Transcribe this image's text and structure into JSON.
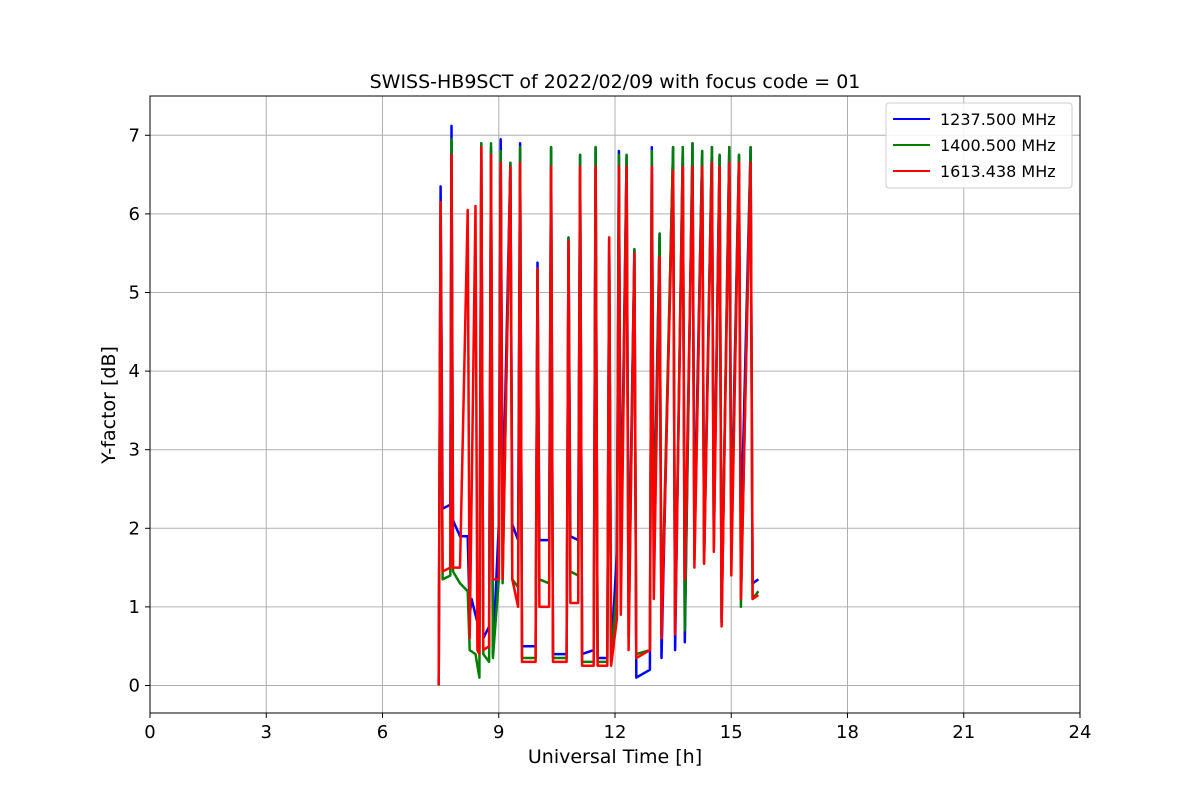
{
  "chart_data": {
    "type": "line",
    "title": "SWISS-HB9SCT of 2022/02/09 with focus code = 01",
    "xlabel": "Universal Time [h]",
    "ylabel": "Y-factor [dB]",
    "xlim": [
      0,
      24
    ],
    "ylim": [
      -0.35,
      7.5
    ],
    "xticks": [
      0,
      3,
      6,
      9,
      12,
      15,
      18,
      21,
      24
    ],
    "yticks": [
      0,
      1,
      2,
      3,
      4,
      5,
      6,
      7
    ],
    "grid": true,
    "legend_position": "top-right",
    "series": [
      {
        "name": "1237.500 MHz",
        "color": "#0000ff",
        "points": [
          [
            7.45,
            0
          ],
          [
            7.5,
            6.35
          ],
          [
            7.55,
            2.25
          ],
          [
            7.75,
            2.3
          ],
          [
            7.78,
            7.12
          ],
          [
            7.82,
            2.1
          ],
          [
            8.0,
            1.9
          ],
          [
            8.2,
            1.9
          ],
          [
            8.25,
            0.9
          ],
          [
            8.3,
            1.1
          ],
          [
            8.5,
            0.7
          ],
          [
            8.55,
            6.9
          ],
          [
            8.6,
            0.6
          ],
          [
            8.75,
            0.75
          ],
          [
            8.8,
            6.85
          ],
          [
            8.85,
            0.4
          ],
          [
            9.0,
            2.05
          ],
          [
            9.05,
            6.95
          ],
          [
            9.1,
            2.1
          ],
          [
            9.3,
            6.65
          ],
          [
            9.35,
            2.05
          ],
          [
            9.5,
            1.85
          ],
          [
            9.55,
            6.9
          ],
          [
            9.6,
            0.5
          ],
          [
            9.95,
            0.5
          ],
          [
            10.0,
            5.38
          ],
          [
            10.05,
            1.85
          ],
          [
            10.3,
            1.85
          ],
          [
            10.35,
            6.85
          ],
          [
            10.4,
            0.4
          ],
          [
            10.75,
            0.4
          ],
          [
            10.8,
            5.7
          ],
          [
            10.85,
            1.9
          ],
          [
            11.05,
            1.85
          ],
          [
            11.1,
            6.75
          ],
          [
            11.15,
            0.4
          ],
          [
            11.45,
            0.45
          ],
          [
            11.5,
            6.85
          ],
          [
            11.55,
            0.35
          ],
          [
            11.8,
            0.35
          ],
          [
            11.85,
            5.7
          ],
          [
            11.9,
            0.35
          ],
          [
            12.05,
            1.7
          ],
          [
            12.1,
            6.8
          ],
          [
            12.15,
            1.65
          ],
          [
            12.3,
            6.75
          ],
          [
            12.35,
            1.05
          ],
          [
            12.5,
            5.55
          ],
          [
            12.55,
            0.1
          ],
          [
            12.9,
            0.2
          ],
          [
            12.95,
            6.85
          ],
          [
            13.0,
            1.85
          ],
          [
            13.15,
            5.75
          ],
          [
            13.2,
            0.35
          ],
          [
            13.5,
            6.85
          ],
          [
            13.55,
            0.45
          ],
          [
            13.75,
            6.85
          ],
          [
            13.8,
            0.55
          ],
          [
            14.0,
            6.9
          ],
          [
            14.05,
            1.95
          ],
          [
            14.25,
            6.8
          ],
          [
            14.3,
            1.7
          ],
          [
            14.5,
            6.85
          ],
          [
            14.55,
            1.95
          ],
          [
            14.7,
            6.75
          ],
          [
            14.75,
            0.8
          ],
          [
            14.95,
            6.85
          ],
          [
            15.0,
            2.0
          ],
          [
            15.2,
            6.75
          ],
          [
            15.25,
            1.85
          ],
          [
            15.5,
            6.85
          ],
          [
            15.55,
            1.3
          ],
          [
            15.7,
            1.35
          ]
        ]
      },
      {
        "name": "1400.500 MHz",
        "color": "#008000",
        "points": [
          [
            7.45,
            0
          ],
          [
            7.5,
            6.15
          ],
          [
            7.55,
            1.35
          ],
          [
            7.75,
            1.4
          ],
          [
            7.78,
            6.95
          ],
          [
            7.82,
            1.45
          ],
          [
            8.0,
            1.3
          ],
          [
            8.2,
            1.2
          ],
          [
            8.25,
            0.45
          ],
          [
            8.4,
            0.4
          ],
          [
            8.5,
            0.1
          ],
          [
            8.55,
            6.9
          ],
          [
            8.6,
            0.4
          ],
          [
            8.75,
            0.3
          ],
          [
            8.8,
            6.9
          ],
          [
            8.85,
            0.35
          ],
          [
            9.0,
            1.35
          ],
          [
            9.05,
            6.8
          ],
          [
            9.1,
            1.3
          ],
          [
            9.3,
            6.65
          ],
          [
            9.35,
            1.35
          ],
          [
            9.5,
            1.25
          ],
          [
            9.55,
            6.85
          ],
          [
            9.6,
            0.35
          ],
          [
            9.95,
            0.35
          ],
          [
            10.0,
            5.3
          ],
          [
            10.05,
            1.35
          ],
          [
            10.3,
            1.3
          ],
          [
            10.35,
            6.85
          ],
          [
            10.4,
            0.35
          ],
          [
            10.75,
            0.35
          ],
          [
            10.8,
            5.7
          ],
          [
            10.85,
            1.45
          ],
          [
            11.05,
            1.4
          ],
          [
            11.1,
            6.75
          ],
          [
            11.15,
            0.3
          ],
          [
            11.45,
            0.3
          ],
          [
            11.5,
            6.85
          ],
          [
            11.55,
            0.3
          ],
          [
            11.8,
            0.3
          ],
          [
            11.85,
            5.7
          ],
          [
            11.9,
            0.3
          ],
          [
            12.05,
            1.25
          ],
          [
            12.1,
            6.75
          ],
          [
            12.15,
            1.25
          ],
          [
            12.3,
            6.75
          ],
          [
            12.35,
            0.6
          ],
          [
            12.5,
            5.55
          ],
          [
            12.55,
            0.4
          ],
          [
            12.9,
            0.45
          ],
          [
            12.95,
            6.8
          ],
          [
            13.0,
            1.5
          ],
          [
            13.15,
            5.75
          ],
          [
            13.2,
            0.7
          ],
          [
            13.5,
            6.85
          ],
          [
            13.55,
            0.7
          ],
          [
            13.75,
            6.85
          ],
          [
            13.8,
            0.7
          ],
          [
            14.0,
            6.9
          ],
          [
            14.05,
            1.6
          ],
          [
            14.25,
            6.8
          ],
          [
            14.3,
            1.55
          ],
          [
            14.5,
            6.85
          ],
          [
            14.55,
            1.75
          ],
          [
            14.7,
            6.75
          ],
          [
            14.75,
            0.85
          ],
          [
            14.95,
            6.85
          ],
          [
            15.0,
            1.7
          ],
          [
            15.2,
            6.75
          ],
          [
            15.25,
            1.0
          ],
          [
            15.5,
            6.85
          ],
          [
            15.55,
            1.1
          ],
          [
            15.7,
            1.2
          ]
        ]
      },
      {
        "name": "1613.438 MHz",
        "color": "#ff0000",
        "points": [
          [
            7.45,
            0
          ],
          [
            7.5,
            6.15
          ],
          [
            7.55,
            1.45
          ],
          [
            7.75,
            1.5
          ],
          [
            7.78,
            6.75
          ],
          [
            7.82,
            1.5
          ],
          [
            8.0,
            1.5
          ],
          [
            8.2,
            6.05
          ],
          [
            8.25,
            0.6
          ],
          [
            8.4,
            6.1
          ],
          [
            8.45,
            0.45
          ],
          [
            8.5,
            0.4
          ],
          [
            8.55,
            6.85
          ],
          [
            8.6,
            0.45
          ],
          [
            8.75,
            0.5
          ],
          [
            8.8,
            6.75
          ],
          [
            8.85,
            1.35
          ],
          [
            9.0,
            1.35
          ],
          [
            9.05,
            6.65
          ],
          [
            9.1,
            1.35
          ],
          [
            9.3,
            6.6
          ],
          [
            9.35,
            1.35
          ],
          [
            9.5,
            1.0
          ],
          [
            9.55,
            6.65
          ],
          [
            9.6,
            0.3
          ],
          [
            9.95,
            0.3
          ],
          [
            10.0,
            5.3
          ],
          [
            10.05,
            1.0
          ],
          [
            10.3,
            1.0
          ],
          [
            10.35,
            6.6
          ],
          [
            10.4,
            0.3
          ],
          [
            10.75,
            0.3
          ],
          [
            10.8,
            5.65
          ],
          [
            10.85,
            1.05
          ],
          [
            11.05,
            1.05
          ],
          [
            11.1,
            6.6
          ],
          [
            11.15,
            0.25
          ],
          [
            11.45,
            0.25
          ],
          [
            11.5,
            6.6
          ],
          [
            11.55,
            0.25
          ],
          [
            11.8,
            0.25
          ],
          [
            11.85,
            5.7
          ],
          [
            11.9,
            0.25
          ],
          [
            12.05,
            0.85
          ],
          [
            12.1,
            6.6
          ],
          [
            12.15,
            0.9
          ],
          [
            12.3,
            6.6
          ],
          [
            12.35,
            0.45
          ],
          [
            12.5,
            5.5
          ],
          [
            12.55,
            0.35
          ],
          [
            12.9,
            0.45
          ],
          [
            12.95,
            6.6
          ],
          [
            13.0,
            1.1
          ],
          [
            13.15,
            5.45
          ],
          [
            13.2,
            0.6
          ],
          [
            13.5,
            6.55
          ],
          [
            13.55,
            0.65
          ],
          [
            13.75,
            6.6
          ],
          [
            13.8,
            1.35
          ],
          [
            14.0,
            6.6
          ],
          [
            14.05,
            1.5
          ],
          [
            14.25,
            6.6
          ],
          [
            14.3,
            1.55
          ],
          [
            14.5,
            6.65
          ],
          [
            14.55,
            1.7
          ],
          [
            14.7,
            6.6
          ],
          [
            14.75,
            0.75
          ],
          [
            14.95,
            6.65
          ],
          [
            15.0,
            1.4
          ],
          [
            15.2,
            6.65
          ],
          [
            15.25,
            1.1
          ],
          [
            15.5,
            6.65
          ],
          [
            15.55,
            1.1
          ],
          [
            15.7,
            1.15
          ]
        ]
      }
    ]
  }
}
